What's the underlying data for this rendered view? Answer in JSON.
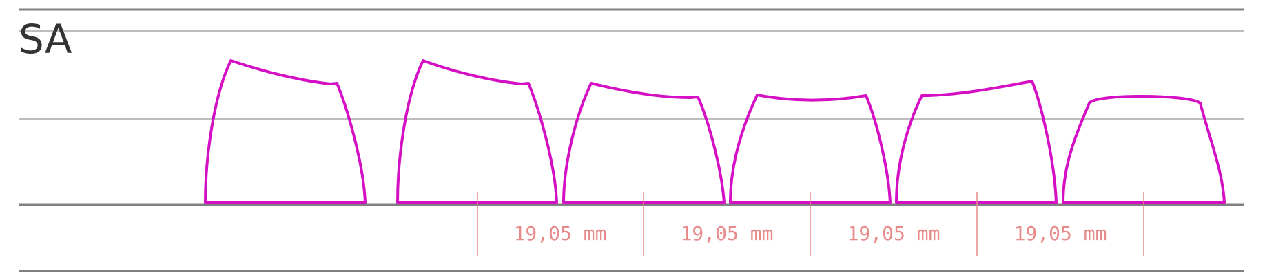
{
  "profile_name": "SA",
  "key_spacing_labels": [
    "19,05 mm",
    "19,05 mm",
    "19,05 mm",
    "19,05 mm"
  ],
  "colors": {
    "keycap_outline": "#d40fc4",
    "dimension": "#e88a8a",
    "rule_dark": "#808080",
    "rule_light": "#bdbdbd",
    "title_text": "#333333"
  }
}
